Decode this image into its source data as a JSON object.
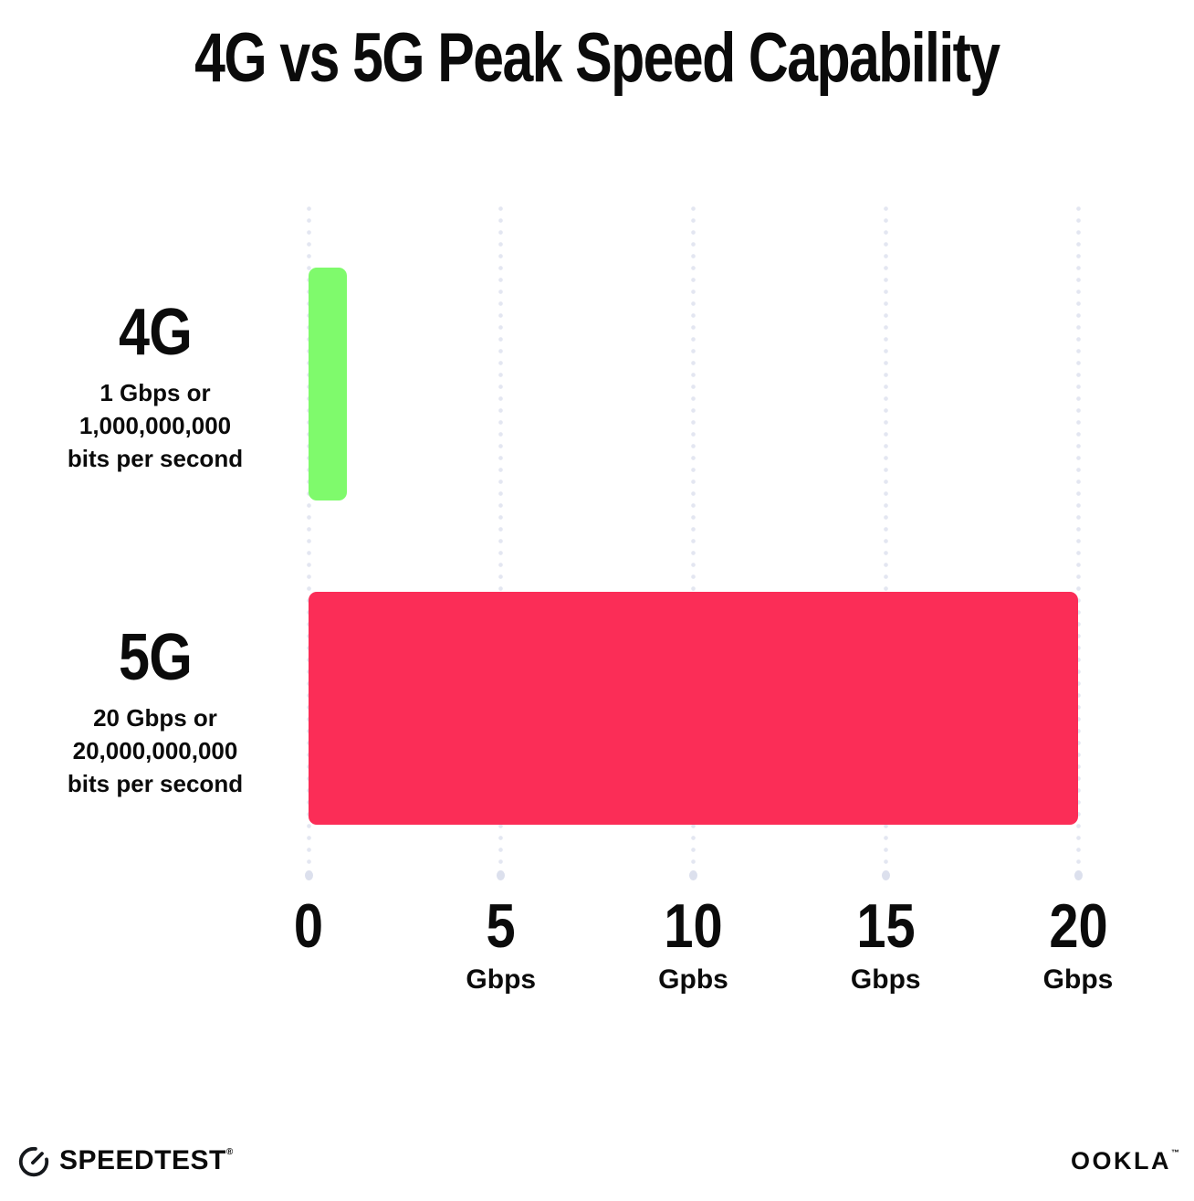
{
  "title": "4G vs 5G Peak Speed Capability",
  "colors": {
    "bar_4g": "#7ffa6c",
    "bar_5g": "#fb2d57",
    "grid_dot": "#e3e6f1",
    "text": "#0b0b0b",
    "background": "#ffffff"
  },
  "chart_data": {
    "type": "bar",
    "orientation": "horizontal",
    "title": "4G vs 5G Peak Speed Capability",
    "categories": [
      "4G",
      "5G"
    ],
    "values": [
      1,
      20
    ],
    "unit": "Gbps",
    "xlim": [
      0,
      20
    ],
    "grid": "dotted-vertical",
    "legend": "none",
    "bar_colors": [
      "#7ffa6c",
      "#fb2d57"
    ],
    "series_labels": [
      {
        "name": "4G",
        "sublabel_lines": [
          "1 Gbps or",
          "1,000,000,000",
          "bits per second"
        ]
      },
      {
        "name": "5G",
        "sublabel_lines": [
          "20 Gbps or",
          "20,000,000,000",
          "bits per second"
        ]
      }
    ],
    "x_ticks": [
      {
        "value": "0",
        "unit": ""
      },
      {
        "value": "5",
        "unit": "Gbps"
      },
      {
        "value": "10",
        "unit": "Gpbs"
      },
      {
        "value": "15",
        "unit": "Gbps"
      },
      {
        "value": "20",
        "unit": "Gbps"
      }
    ]
  },
  "footer": {
    "speedtest_logo": "SPEEDTEST",
    "speedtest_mark": "®",
    "ookla_logo": "OOKLA",
    "ookla_mark": "™"
  }
}
